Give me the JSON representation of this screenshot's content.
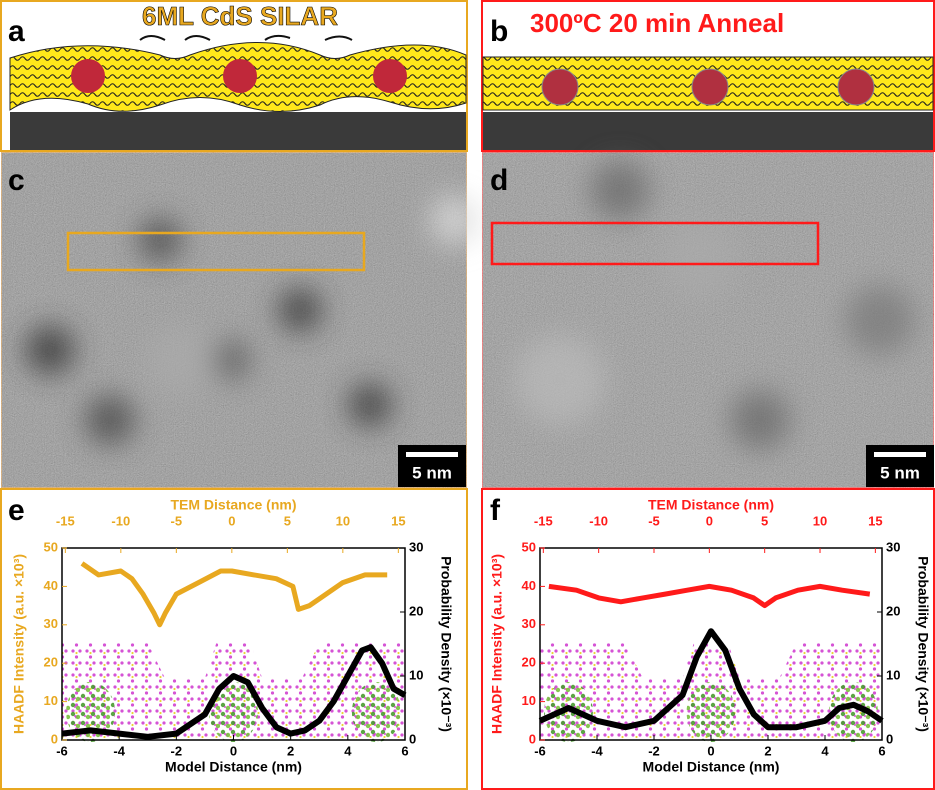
{
  "panels": {
    "a": {
      "label": "a",
      "title": "6ML CdS SILAR"
    },
    "b": {
      "label": "b",
      "title": "300ºC 20 min Anneal"
    },
    "c": {
      "label": "c",
      "scale_bar": "5 nm"
    },
    "d": {
      "label": "d",
      "scale_bar": "5 nm"
    },
    "e": {
      "label": "e"
    },
    "f": {
      "label": "f"
    }
  },
  "chart_data": [
    {
      "type": "line",
      "x_label": "Model Distance (nm)",
      "x2_label": "TEM Distance (nm)",
      "y_label": "HAADF Intensity (a.u. ×10³)",
      "y2_label": "Probability Density (×10⁻³)",
      "xlim": [
        -6,
        6
      ],
      "xticks": [
        -6,
        -4,
        -2,
        0,
        2,
        4,
        6
      ],
      "x2lim": [
        -15.3,
        15.6
      ],
      "x2ticks": [
        -15,
        -10,
        -5,
        0,
        5,
        10,
        15
      ],
      "ylim": [
        0,
        50
      ],
      "yticks": [
        0,
        10,
        20,
        30,
        40,
        50
      ],
      "y2lim": [
        0,
        30
      ],
      "y2ticks": [
        0,
        10,
        20,
        30
      ],
      "series": [
        {
          "color": "#e8a820",
          "x_axis": "x2",
          "x": [
            -13.5,
            -12,
            -10,
            -9,
            -8,
            -7,
            -6.5,
            -6,
            -5,
            -3,
            -1,
            0,
            2,
            4,
            5.5,
            6,
            7,
            8,
            10,
            12,
            14
          ],
          "values": [
            46,
            43,
            44,
            42,
            38,
            33,
            30,
            33,
            38,
            41,
            44,
            44,
            43,
            42,
            40,
            34,
            35,
            37,
            41,
            43,
            43
          ]
        },
        {
          "color": "#000000",
          "axis": "y2",
          "x": [
            -6,
            -5,
            -4,
            -3,
            -2,
            -1,
            -0.5,
            0,
            0.5,
            1,
            1.5,
            2,
            2.5,
            3,
            3.5,
            4,
            4.5,
            4.8,
            5.2,
            5.6,
            6
          ],
          "values": [
            1,
            1.5,
            1,
            0.5,
            1,
            4,
            8,
            10,
            9,
            5,
            2,
            1,
            1.5,
            3,
            6,
            10,
            14,
            14.5,
            12,
            8,
            7
          ]
        }
      ]
    },
    {
      "type": "line",
      "x_label": "Model Distance (nm)",
      "x2_label": "TEM Distance (nm)",
      "y_label": "HAADF Intensity (a.u. ×10³)",
      "y2_label": "Probability Density (×10⁻³)",
      "xlim": [
        -6,
        6
      ],
      "xticks": [
        -6,
        -4,
        -2,
        0,
        2,
        4,
        6
      ],
      "x2lim": [
        -15.3,
        15.6
      ],
      "x2ticks": [
        -15,
        -10,
        -5,
        0,
        5,
        10,
        15
      ],
      "ylim": [
        0,
        50
      ],
      "yticks": [
        0,
        10,
        20,
        30,
        40,
        50
      ],
      "y2lim": [
        0,
        30
      ],
      "y2ticks": [
        0,
        10,
        20,
        30
      ],
      "series": [
        {
          "color": "#ff1a1a",
          "x_axis": "x2",
          "x": [
            -14.5,
            -12,
            -10,
            -8,
            -6,
            -4,
            -2,
            0,
            2,
            4,
            5,
            6,
            8,
            10,
            12,
            14.5
          ],
          "values": [
            40,
            39,
            37,
            36,
            37,
            38,
            39,
            40,
            39,
            37,
            35,
            37,
            39,
            40,
            39,
            38
          ]
        },
        {
          "color": "#000000",
          "axis": "y2",
          "x": [
            -6,
            -5,
            -4.5,
            -4,
            -3,
            -2,
            -1,
            -0.5,
            0,
            0.5,
            1,
            1.5,
            2,
            3,
            4,
            4.5,
            5,
            5.5,
            6
          ],
          "values": [
            3,
            5,
            4,
            3,
            2,
            3,
            7,
            13,
            17,
            14,
            8,
            4,
            2,
            2,
            3,
            5,
            5.5,
            4.5,
            3
          ]
        }
      ]
    }
  ]
}
